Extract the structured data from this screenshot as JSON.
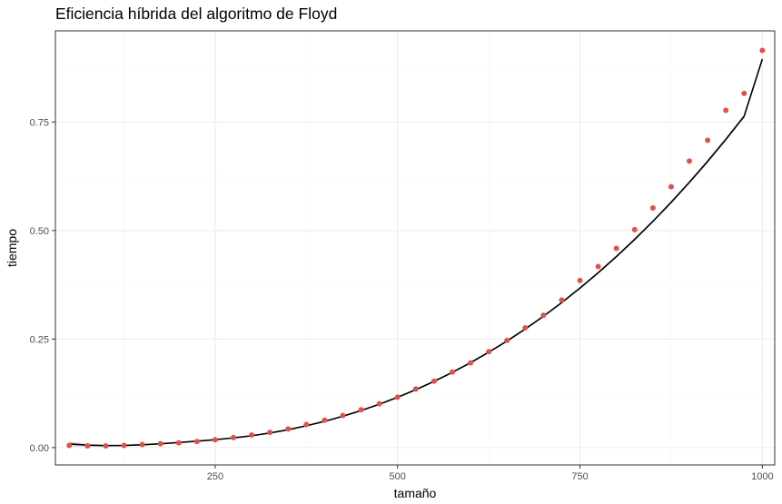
{
  "chart_data": {
    "type": "scatter",
    "title": "Eficiencia híbrida del algoritmo de Floyd",
    "xlabel": "tamaño",
    "ylabel": "tiempo",
    "xlim": [
      31,
      1017
    ],
    "ylim": [
      -0.04,
      0.96
    ],
    "x_ticks": [
      250,
      500,
      750,
      1000
    ],
    "x_tick_labels": [
      "250",
      "500",
      "750",
      "1000"
    ],
    "y_ticks": [
      0.0,
      0.25,
      0.5,
      0.75
    ],
    "y_tick_labels": [
      "0.00",
      "0.25",
      "0.50",
      "0.75"
    ],
    "grid": true,
    "legend": "none",
    "colors": {
      "points": "#e0514a",
      "fit_line": "#000000",
      "confidence_band": "#999999",
      "panel_border": "#333333",
      "grid_major": "#ebebeb",
      "grid_minor": "#f5f5f5"
    },
    "series": [
      {
        "kind": "points",
        "x": [
          50,
          75,
          100,
          125,
          150,
          175,
          200,
          225,
          250,
          275,
          300,
          325,
          350,
          375,
          400,
          425,
          450,
          475,
          500,
          525,
          550,
          575,
          600,
          625,
          650,
          675,
          700,
          725,
          750,
          775,
          800,
          825,
          850,
          875,
          900,
          925,
          950,
          975,
          1000
        ],
        "y": [
          0.005,
          0.004,
          0.004,
          0.005,
          0.007,
          0.009,
          0.011,
          0.014,
          0.018,
          0.023,
          0.029,
          0.035,
          0.043,
          0.053,
          0.063,
          0.074,
          0.087,
          0.101,
          0.116,
          0.135,
          0.153,
          0.174,
          0.195,
          0.221,
          0.247,
          0.276,
          0.305,
          0.34,
          0.385,
          0.417,
          0.459,
          0.502,
          0.552,
          0.601,
          0.66,
          0.708,
          0.777,
          0.816,
          0.915
        ]
      },
      {
        "kind": "fit",
        "x": [
          50,
          75,
          100,
          125,
          150,
          175,
          200,
          225,
          250,
          275,
          300,
          325,
          350,
          375,
          400,
          425,
          450,
          475,
          500,
          525,
          550,
          575,
          600,
          625,
          650,
          675,
          700,
          725,
          750,
          775,
          800,
          825,
          850,
          875,
          900,
          925,
          950,
          975,
          1000
        ],
        "y": [
          0.0085,
          0.0055,
          0.0045,
          0.0049,
          0.0064,
          0.0088,
          0.0116,
          0.0148,
          0.0182,
          0.0224,
          0.0272,
          0.0336,
          0.0412,
          0.0502,
          0.0605,
          0.0722,
          0.0853,
          0.0998,
          0.1158,
          0.1334,
          0.1525,
          0.1732,
          0.1956,
          0.2197,
          0.2455,
          0.2732,
          0.3026,
          0.334,
          0.3674,
          0.4027,
          0.4401,
          0.4796,
          0.5212,
          0.565,
          0.6111,
          0.6594,
          0.7101,
          0.7631,
          0.895
        ],
        "band_halfwidth": [
          0.0055,
          0.0035,
          0.0022,
          0.0018,
          0.0016,
          0.0015,
          0.0015,
          0.0015,
          0.0015,
          0.0016,
          0.0016,
          0.0017,
          0.0017,
          0.0018,
          0.0018,
          0.0019,
          0.0019,
          0.002,
          0.002,
          0.002,
          0.0021,
          0.0021,
          0.0022,
          0.0022,
          0.0023,
          0.0023,
          0.0024,
          0.0025,
          0.0026,
          0.0027,
          0.0028,
          0.003,
          0.0032,
          0.0034,
          0.0036,
          0.0038,
          0.004,
          0.0043,
          0.005
        ]
      }
    ]
  }
}
